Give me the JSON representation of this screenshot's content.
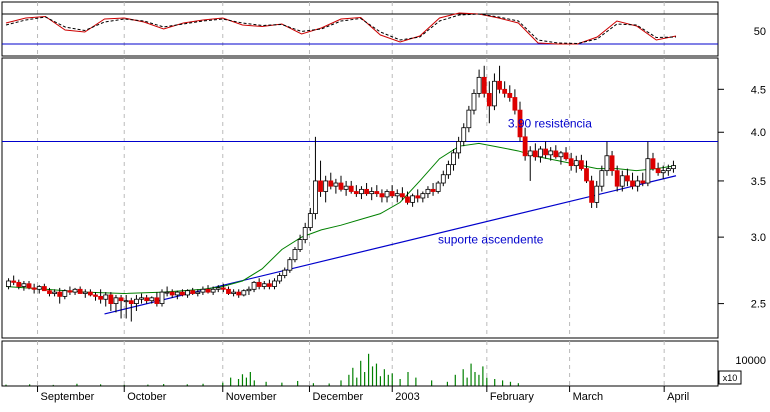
{
  "chart_data": [
    {
      "type": "line",
      "panel": "oscillator",
      "y_tick_labels": [
        "50"
      ],
      "reference_lines": [
        {
          "y": 80,
          "color": "#000000"
        },
        {
          "y": 20,
          "color": "#0000cc"
        }
      ],
      "ylim": [
        0,
        100
      ],
      "series": [
        {
          "color": "#cc0000",
          "style": "solid",
          "x": [
            0,
            5,
            10,
            15,
            20,
            25,
            30,
            35,
            40,
            45,
            50,
            55,
            60,
            65,
            70,
            75,
            80,
            85,
            90,
            95,
            100,
            105,
            110,
            115,
            120,
            125,
            130,
            135,
            140,
            145,
            150,
            155,
            160,
            165,
            170
          ],
          "values": [
            62,
            72,
            75,
            48,
            44,
            70,
            72,
            64,
            50,
            62,
            68,
            72,
            58,
            55,
            60,
            40,
            52,
            70,
            73,
            38,
            24,
            36,
            72,
            82,
            80,
            72,
            62,
            22,
            20,
            20,
            34,
            66,
            56,
            28,
            36
          ]
        },
        {
          "color": "#000000",
          "style": "dashed",
          "x": [
            0,
            5,
            10,
            15,
            20,
            25,
            30,
            35,
            40,
            45,
            50,
            55,
            60,
            65,
            70,
            75,
            80,
            85,
            90,
            95,
            100,
            105,
            110,
            115,
            120,
            125,
            130,
            135,
            140,
            145,
            150,
            155,
            160,
            165,
            170
          ],
          "values": [
            58,
            68,
            74,
            54,
            47,
            64,
            70,
            66,
            54,
            60,
            66,
            70,
            62,
            57,
            59,
            45,
            50,
            66,
            71,
            44,
            28,
            34,
            66,
            78,
            80,
            74,
            66,
            28,
            22,
            21,
            30,
            60,
            58,
            33,
            34
          ]
        }
      ]
    },
    {
      "type": "candlestick",
      "panel": "price",
      "y_tick_labels": [
        "2.5",
        "3.0",
        "3.5",
        "4.0",
        "4.5"
      ],
      "ylim": [
        2.3,
        4.85
      ],
      "y_scale": "log",
      "x_tick_labels": [
        "September",
        "October",
        "November",
        "December",
        "2003",
        "February",
        "March",
        "April"
      ],
      "x_tick_positions": [
        8,
        30,
        55,
        77,
        98,
        122,
        143,
        167
      ],
      "annotations": [
        {
          "text": "3.90 resistência",
          "x": 138,
          "y": 4.05,
          "color": "#0000cc"
        },
        {
          "text": "suporte ascendente",
          "x": 123,
          "y": 2.95,
          "color": "#0000cc"
        }
      ],
      "reference_lines": [
        {
          "y": 3.9,
          "color": "#0000cc",
          "label": "3.90 resistência"
        }
      ],
      "trendlines": [
        {
          "x1": 25,
          "y1": 2.43,
          "x2": 170,
          "y2": 3.55,
          "color": "#0000cc",
          "label": "suporte ascendente"
        }
      ],
      "moving_average": {
        "color": "#008000",
        "x": [
          0,
          10,
          20,
          30,
          40,
          50,
          55,
          60,
          65,
          70,
          75,
          80,
          85,
          90,
          95,
          100,
          105,
          110,
          115,
          120,
          125,
          130,
          135,
          140,
          145,
          150,
          155,
          160,
          165,
          170
        ],
        "values": [
          2.62,
          2.6,
          2.58,
          2.57,
          2.58,
          2.6,
          2.62,
          2.66,
          2.75,
          2.9,
          3.0,
          3.06,
          3.1,
          3.15,
          3.2,
          3.3,
          3.5,
          3.72,
          3.85,
          3.88,
          3.84,
          3.8,
          3.74,
          3.7,
          3.66,
          3.62,
          3.62,
          3.6,
          3.62,
          3.65
        ]
      },
      "candles": [
        [
          0,
          2.62,
          2.68,
          2.6,
          2.66
        ],
        [
          1,
          2.66,
          2.7,
          2.63,
          2.65
        ],
        [
          2,
          2.65,
          2.67,
          2.6,
          2.62
        ],
        [
          3,
          2.62,
          2.66,
          2.59,
          2.64
        ],
        [
          4,
          2.64,
          2.66,
          2.6,
          2.61
        ],
        [
          5,
          2.61,
          2.64,
          2.57,
          2.6
        ],
        [
          6,
          2.6,
          2.63,
          2.57,
          2.62
        ],
        [
          7,
          2.62,
          2.64,
          2.59,
          2.59
        ],
        [
          8,
          2.59,
          2.61,
          2.55,
          2.57
        ],
        [
          9,
          2.57,
          2.6,
          2.55,
          2.58
        ],
        [
          10,
          2.58,
          2.61,
          2.5,
          2.55
        ],
        [
          11,
          2.55,
          2.6,
          2.53,
          2.59
        ],
        [
          12,
          2.59,
          2.62,
          2.56,
          2.58
        ],
        [
          13,
          2.58,
          2.61,
          2.56,
          2.6
        ],
        [
          14,
          2.6,
          2.62,
          2.57,
          2.57
        ],
        [
          15,
          2.57,
          2.6,
          2.54,
          2.58
        ],
        [
          16,
          2.58,
          2.6,
          2.55,
          2.56
        ],
        [
          17,
          2.56,
          2.58,
          2.52,
          2.55
        ],
        [
          18,
          2.55,
          2.6,
          2.5,
          2.53
        ],
        [
          19,
          2.53,
          2.58,
          2.48,
          2.56
        ],
        [
          20,
          2.56,
          2.58,
          2.45,
          2.5
        ],
        [
          21,
          2.5,
          2.56,
          2.44,
          2.54
        ],
        [
          22,
          2.54,
          2.56,
          2.4,
          2.52
        ],
        [
          23,
          2.52,
          2.56,
          2.4,
          2.52
        ],
        [
          24,
          2.52,
          2.54,
          2.38,
          2.5
        ],
        [
          25,
          2.5,
          2.56,
          2.45,
          2.53
        ],
        [
          26,
          2.53,
          2.57,
          2.5,
          2.54
        ],
        [
          27,
          2.54,
          2.56,
          2.5,
          2.52
        ],
        [
          28,
          2.52,
          2.55,
          2.5,
          2.54
        ],
        [
          29,
          2.54,
          2.58,
          2.48,
          2.5
        ],
        [
          30,
          2.5,
          2.6,
          2.48,
          2.58
        ],
        [
          31,
          2.58,
          2.62,
          2.55,
          2.58
        ],
        [
          32,
          2.58,
          2.6,
          2.54,
          2.56
        ],
        [
          33,
          2.56,
          2.59,
          2.53,
          2.58
        ],
        [
          34,
          2.58,
          2.6,
          2.55,
          2.56
        ],
        [
          35,
          2.56,
          2.6,
          2.54,
          2.59
        ],
        [
          36,
          2.59,
          2.61,
          2.56,
          2.57
        ],
        [
          37,
          2.57,
          2.6,
          2.55,
          2.58
        ],
        [
          38,
          2.58,
          2.62,
          2.56,
          2.6
        ],
        [
          39,
          2.6,
          2.63,
          2.57,
          2.58
        ],
        [
          40,
          2.58,
          2.62,
          2.56,
          2.6
        ],
        [
          41,
          2.6,
          2.63,
          2.58,
          2.61
        ],
        [
          42,
          2.61,
          2.64,
          2.58,
          2.6
        ],
        [
          43,
          2.6,
          2.62,
          2.56,
          2.57
        ],
        [
          44,
          2.57,
          2.6,
          2.55,
          2.58
        ],
        [
          45,
          2.58,
          2.6,
          2.54,
          2.56
        ],
        [
          46,
          2.56,
          2.6,
          2.55,
          2.59
        ],
        [
          47,
          2.59,
          2.62,
          2.56,
          2.6
        ],
        [
          48,
          2.6,
          2.66,
          2.58,
          2.65
        ],
        [
          49,
          2.65,
          2.68,
          2.6,
          2.62
        ],
        [
          50,
          2.62,
          2.66,
          2.6,
          2.64
        ],
        [
          51,
          2.64,
          2.67,
          2.6,
          2.62
        ],
        [
          52,
          2.62,
          2.68,
          2.6,
          2.66
        ],
        [
          53,
          2.66,
          2.72,
          2.64,
          2.7
        ],
        [
          54,
          2.7,
          2.76,
          2.68,
          2.74
        ],
        [
          55,
          2.74,
          2.84,
          2.72,
          2.82
        ],
        [
          56,
          2.82,
          2.92,
          2.8,
          2.9
        ],
        [
          57,
          2.9,
          3.02,
          2.88,
          2.98
        ],
        [
          58,
          2.98,
          3.12,
          2.95,
          3.08
        ],
        [
          59,
          3.08,
          3.25,
          3.05,
          3.2
        ],
        [
          60,
          3.2,
          3.95,
          3.15,
          3.5
        ],
        [
          61,
          3.5,
          3.7,
          3.35,
          3.4
        ],
        [
          62,
          3.4,
          3.55,
          3.3,
          3.5
        ],
        [
          63,
          3.5,
          3.58,
          3.42,
          3.45
        ],
        [
          64,
          3.45,
          3.52,
          3.38,
          3.48
        ],
        [
          65,
          3.48,
          3.55,
          3.4,
          3.42
        ],
        [
          66,
          3.42,
          3.5,
          3.36,
          3.45
        ],
        [
          67,
          3.45,
          3.5,
          3.38,
          3.4
        ],
        [
          68,
          3.4,
          3.46,
          3.35,
          3.38
        ],
        [
          69,
          3.38,
          3.45,
          3.33,
          3.42
        ],
        [
          70,
          3.42,
          3.48,
          3.36,
          3.38
        ],
        [
          71,
          3.38,
          3.44,
          3.32,
          3.4
        ],
        [
          72,
          3.4,
          3.46,
          3.35,
          3.38
        ],
        [
          73,
          3.38,
          3.42,
          3.3,
          3.35
        ],
        [
          74,
          3.35,
          3.42,
          3.3,
          3.4
        ],
        [
          75,
          3.4,
          3.46,
          3.34,
          3.36
        ],
        [
          76,
          3.36,
          3.42,
          3.3,
          3.38
        ],
        [
          77,
          3.38,
          3.44,
          3.32,
          3.35
        ],
        [
          78,
          3.35,
          3.4,
          3.28,
          3.3
        ],
        [
          79,
          3.3,
          3.38,
          3.26,
          3.36
        ],
        [
          80,
          3.36,
          3.42,
          3.3,
          3.34
        ],
        [
          81,
          3.34,
          3.4,
          3.3,
          3.38
        ],
        [
          82,
          3.38,
          3.45,
          3.34,
          3.42
        ],
        [
          83,
          3.42,
          3.48,
          3.36,
          3.4
        ],
        [
          84,
          3.4,
          3.5,
          3.38,
          3.48
        ],
        [
          85,
          3.48,
          3.6,
          3.45,
          3.56
        ],
        [
          86,
          3.56,
          3.7,
          3.52,
          3.66
        ],
        [
          87,
          3.66,
          3.82,
          3.6,
          3.78
        ],
        [
          88,
          3.78,
          3.95,
          3.72,
          3.9
        ],
        [
          89,
          3.9,
          4.1,
          3.85,
          4.05
        ],
        [
          90,
          4.05,
          4.3,
          4.0,
          4.25
        ],
        [
          91,
          4.25,
          4.5,
          4.2,
          4.45
        ],
        [
          92,
          4.45,
          4.75,
          4.4,
          4.65
        ],
        [
          93,
          4.65,
          4.8,
          4.4,
          4.45
        ],
        [
          94,
          4.45,
          4.6,
          4.1,
          4.3
        ],
        [
          95,
          4.3,
          4.7,
          4.25,
          4.6
        ],
        [
          96,
          4.6,
          4.8,
          4.45,
          4.5
        ],
        [
          97,
          4.5,
          4.6,
          4.4,
          4.45
        ],
        [
          98,
          4.45,
          4.55,
          4.35,
          4.4
        ],
        [
          99,
          4.4,
          4.5,
          4.2,
          4.25
        ],
        [
          100,
          4.25,
          4.35,
          3.9,
          3.95
        ],
        [
          101,
          3.95,
          4.05,
          3.7,
          3.75
        ],
        [
          102,
          3.75,
          3.85,
          3.5,
          3.8
        ],
        [
          103,
          3.8,
          3.88,
          3.7,
          3.74
        ],
        [
          104,
          3.74,
          3.85,
          3.68,
          3.82
        ],
        [
          105,
          3.82,
          3.9,
          3.72,
          3.76
        ],
        [
          106,
          3.76,
          3.84,
          3.7,
          3.8
        ],
        [
          107,
          3.8,
          3.86,
          3.72,
          3.74
        ],
        [
          108,
          3.74,
          3.8,
          3.66,
          3.78
        ],
        [
          109,
          3.78,
          3.84,
          3.7,
          3.72
        ],
        [
          110,
          3.72,
          3.78,
          3.6,
          3.65
        ],
        [
          111,
          3.65,
          3.75,
          3.58,
          3.7
        ],
        [
          112,
          3.7,
          3.76,
          3.6,
          3.62
        ],
        [
          113,
          3.62,
          3.7,
          3.48,
          3.5
        ],
        [
          114,
          3.5,
          3.55,
          3.25,
          3.3
        ],
        [
          115,
          3.3,
          3.5,
          3.25,
          3.45
        ],
        [
          116,
          3.45,
          3.65,
          3.4,
          3.6
        ],
        [
          117,
          3.6,
          3.9,
          3.55,
          3.75
        ],
        [
          118,
          3.75,
          3.8,
          3.55,
          3.6
        ],
        [
          119,
          3.6,
          3.65,
          3.4,
          3.45
        ],
        [
          120,
          3.45,
          3.6,
          3.4,
          3.55
        ],
        [
          121,
          3.55,
          3.62,
          3.45,
          3.5
        ],
        [
          122,
          3.5,
          3.58,
          3.42,
          3.45
        ],
        [
          123,
          3.45,
          3.55,
          3.4,
          3.5
        ],
        [
          124,
          3.5,
          3.58,
          3.45,
          3.48
        ],
        [
          125,
          3.48,
          3.9,
          3.45,
          3.72
        ],
        [
          126,
          3.72,
          3.78,
          3.6,
          3.62
        ],
        [
          127,
          3.62,
          3.68,
          3.55,
          3.58
        ],
        [
          128,
          3.58,
          3.65,
          3.52,
          3.6
        ],
        [
          129,
          3.6,
          3.66,
          3.55,
          3.62
        ],
        [
          130,
          3.62,
          3.7,
          3.58,
          3.65
        ]
      ]
    },
    {
      "type": "bar",
      "panel": "volume",
      "y_tick_labels": [
        "10000"
      ],
      "y_multiplier_label": "x10",
      "ylim": [
        0,
        1500
      ],
      "x": [
        0,
        6,
        12,
        18,
        24,
        30,
        36,
        40,
        46,
        50,
        55,
        57,
        59,
        60,
        61,
        62,
        63,
        66,
        70,
        74,
        78,
        82,
        85,
        87,
        88,
        89,
        90,
        91,
        92,
        93,
        94,
        95,
        96,
        97,
        98,
        100,
        102,
        104,
        108,
        112,
        114,
        116,
        117,
        118,
        119,
        120,
        121,
        122,
        124,
        126,
        128,
        130
      ],
      "values": [
        50,
        60,
        40,
        80,
        60,
        40,
        50,
        70,
        60,
        80,
        120,
        300,
        250,
        420,
        300,
        500,
        200,
        150,
        120,
        180,
        100,
        90,
        200,
        400,
        650,
        300,
        900,
        500,
        1150,
        700,
        800,
        350,
        600,
        400,
        450,
        250,
        500,
        300,
        200,
        150,
        400,
        600,
        300,
        800,
        500,
        400,
        700,
        300,
        250,
        200,
        150,
        100
      ]
    }
  ]
}
